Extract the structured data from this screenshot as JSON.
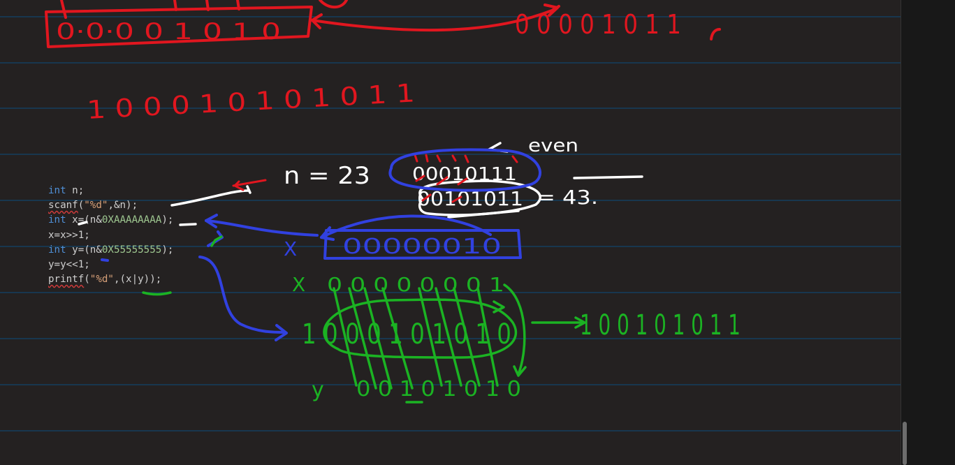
{
  "app": {
    "name": "Whiteboard with code snippet"
  },
  "code": {
    "lines": [
      [
        {
          "t": "int ",
          "c": "kw"
        },
        {
          "t": "n;",
          "c": "fn"
        }
      ],
      [
        {
          "t": "scanf",
          "c": "fn",
          "wavy": true
        },
        {
          "t": "(",
          "c": "fn"
        },
        {
          "t": "\"%d\"",
          "c": "str"
        },
        {
          "t": ",&n);",
          "c": "fn"
        }
      ],
      [
        {
          "t": "int ",
          "c": "kw"
        },
        {
          "t": "x=(n&",
          "c": "fn"
        },
        {
          "t": "0XAAAAAAAA",
          "c": "hex"
        },
        {
          "t": ");",
          "c": "fn"
        }
      ],
      [
        {
          "t": "x=x>>1;",
          "c": "fn"
        }
      ],
      [
        {
          "t": "int ",
          "c": "kw"
        },
        {
          "t": "y=(n&",
          "c": "fn"
        },
        {
          "t": "0X55555555",
          "c": "hex"
        },
        {
          "t": ");",
          "c": "fn"
        }
      ],
      [
        {
          "t": "y=y<<1;",
          "c": "fn"
        }
      ],
      [
        {
          "t": "printf",
          "c": "fn",
          "wavy": true
        },
        {
          "t": "(",
          "c": "fn"
        },
        {
          "t": "\"%d\"",
          "c": "str"
        },
        {
          "t": ",(x|y));",
          "c": "fn"
        }
      ]
    ]
  },
  "annotations": {
    "red_top_box": "0·0·0 0 1 0 1 0",
    "red_top_right": "0 0 0 0 1 0 1 1",
    "red_small_mark": "r",
    "red_middle_row": "1 0 0 0 1 0 1 0 1 0 1 1",
    "white_n_label": "n = 23",
    "white_binary_top": "00010111",
    "white_even_label": "even",
    "white_binary_bottom": "00101011",
    "white_equals": "= 43.",
    "blue_x_label": "X",
    "blue_x_value": "00000010",
    "green_x_label": "X",
    "green_x_row": "0 0 0 0 0 0 0 1",
    "green_combined_row": "1 0 0 0 1 0 1 0 1 0",
    "green_result": "1 0 0 1 0 1 0 1 1",
    "green_y_label": "y",
    "green_y_row": "0 0 1 0 1 0 1 0"
  },
  "colors": {
    "background": "#242121",
    "ruled_line": "#18374f",
    "red_ink": "#e1161f",
    "white_ink": "#ffffff",
    "blue_ink": "#3141e0",
    "green_ink": "#1bb323"
  }
}
